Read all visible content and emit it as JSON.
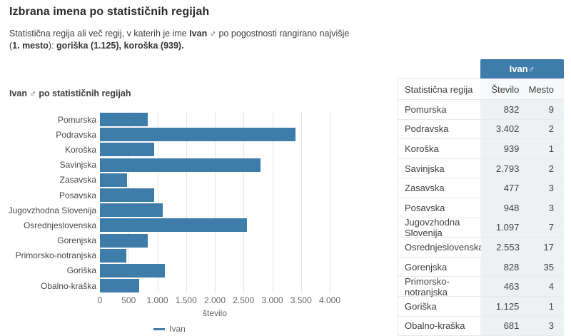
{
  "intro": {
    "title": "Izbrana imena po statističnih regijah",
    "text1": "Statistična regija ali več regij, v katerih je ime ",
    "name": "Ivan ♂",
    "text2": " po pogostnosti rangirano najvišje",
    "paren_open": "(",
    "rank": "1. mesto",
    "paren_close": "): ",
    "highlight": "goriška (1.125), koroška (939)."
  },
  "colors": {
    "accent_blue": "#3e7cab",
    "bar_blue": "#3e7ca9"
  },
  "chart_data": {
    "type": "bar",
    "orientation": "horizontal",
    "title": "Ivan ♂ po statističnih regijah",
    "categories": [
      "Pomurska",
      "Podravska",
      "Koroška",
      "Savinjska",
      "Zasavska",
      "Posavska",
      "Jugovzhodna Slovenija",
      "Osrednjeslovenska",
      "Gorenjska",
      "Primorsko-notranjska",
      "Goriška",
      "Obalno-kraška"
    ],
    "series": [
      {
        "name": "Ivan",
        "values": [
          832,
          3402,
          939,
          2793,
          477,
          948,
          1097,
          2553,
          828,
          463,
          1125,
          681
        ]
      }
    ],
    "xlabel": "število",
    "xlim": [
      0,
      4000
    ],
    "xticks": [
      {
        "value": 0,
        "label": "0"
      },
      {
        "value": 500,
        "label": "500"
      },
      {
        "value": 1000,
        "label": "1.000"
      },
      {
        "value": 1500,
        "label": "1.500"
      },
      {
        "value": 2000,
        "label": "2.000"
      },
      {
        "value": 2500,
        "label": "2.500"
      },
      {
        "value": 3000,
        "label": "3.000"
      },
      {
        "value": 3500,
        "label": "3.500"
      },
      {
        "value": 4000,
        "label": "4.000"
      }
    ],
    "legend": [
      "Ivan"
    ],
    "legend_position": "bottom",
    "grid": true,
    "bar_color": "#3e7ca9"
  },
  "table": {
    "group_header": "Ivan♂",
    "columns": [
      "Statistična regija",
      "Število",
      "Mesto"
    ],
    "rows": [
      {
        "region": "Pomurska",
        "stevilo": "832",
        "mesto": "9"
      },
      {
        "region": "Podravska",
        "stevilo": "3.402",
        "mesto": "2"
      },
      {
        "region": "Koroška",
        "stevilo": "939",
        "mesto": "1"
      },
      {
        "region": "Savinjska",
        "stevilo": "2.793",
        "mesto": "2"
      },
      {
        "region": "Zasavska",
        "stevilo": "477",
        "mesto": "3"
      },
      {
        "region": "Posavska",
        "stevilo": "948",
        "mesto": "3"
      },
      {
        "region": "Jugovzhodna Slovenija",
        "stevilo": "1.097",
        "mesto": "7"
      },
      {
        "region": "Osrednjeslovenska",
        "stevilo": "2.553",
        "mesto": "17"
      },
      {
        "region": "Gorenjska",
        "stevilo": "828",
        "mesto": "35"
      },
      {
        "region": "Primorsko-notranjska",
        "stevilo": "463",
        "mesto": "4"
      },
      {
        "region": "Goriška",
        "stevilo": "1.125",
        "mesto": "1"
      },
      {
        "region": "Obalno-kraška",
        "stevilo": "681",
        "mesto": "3"
      }
    ]
  }
}
